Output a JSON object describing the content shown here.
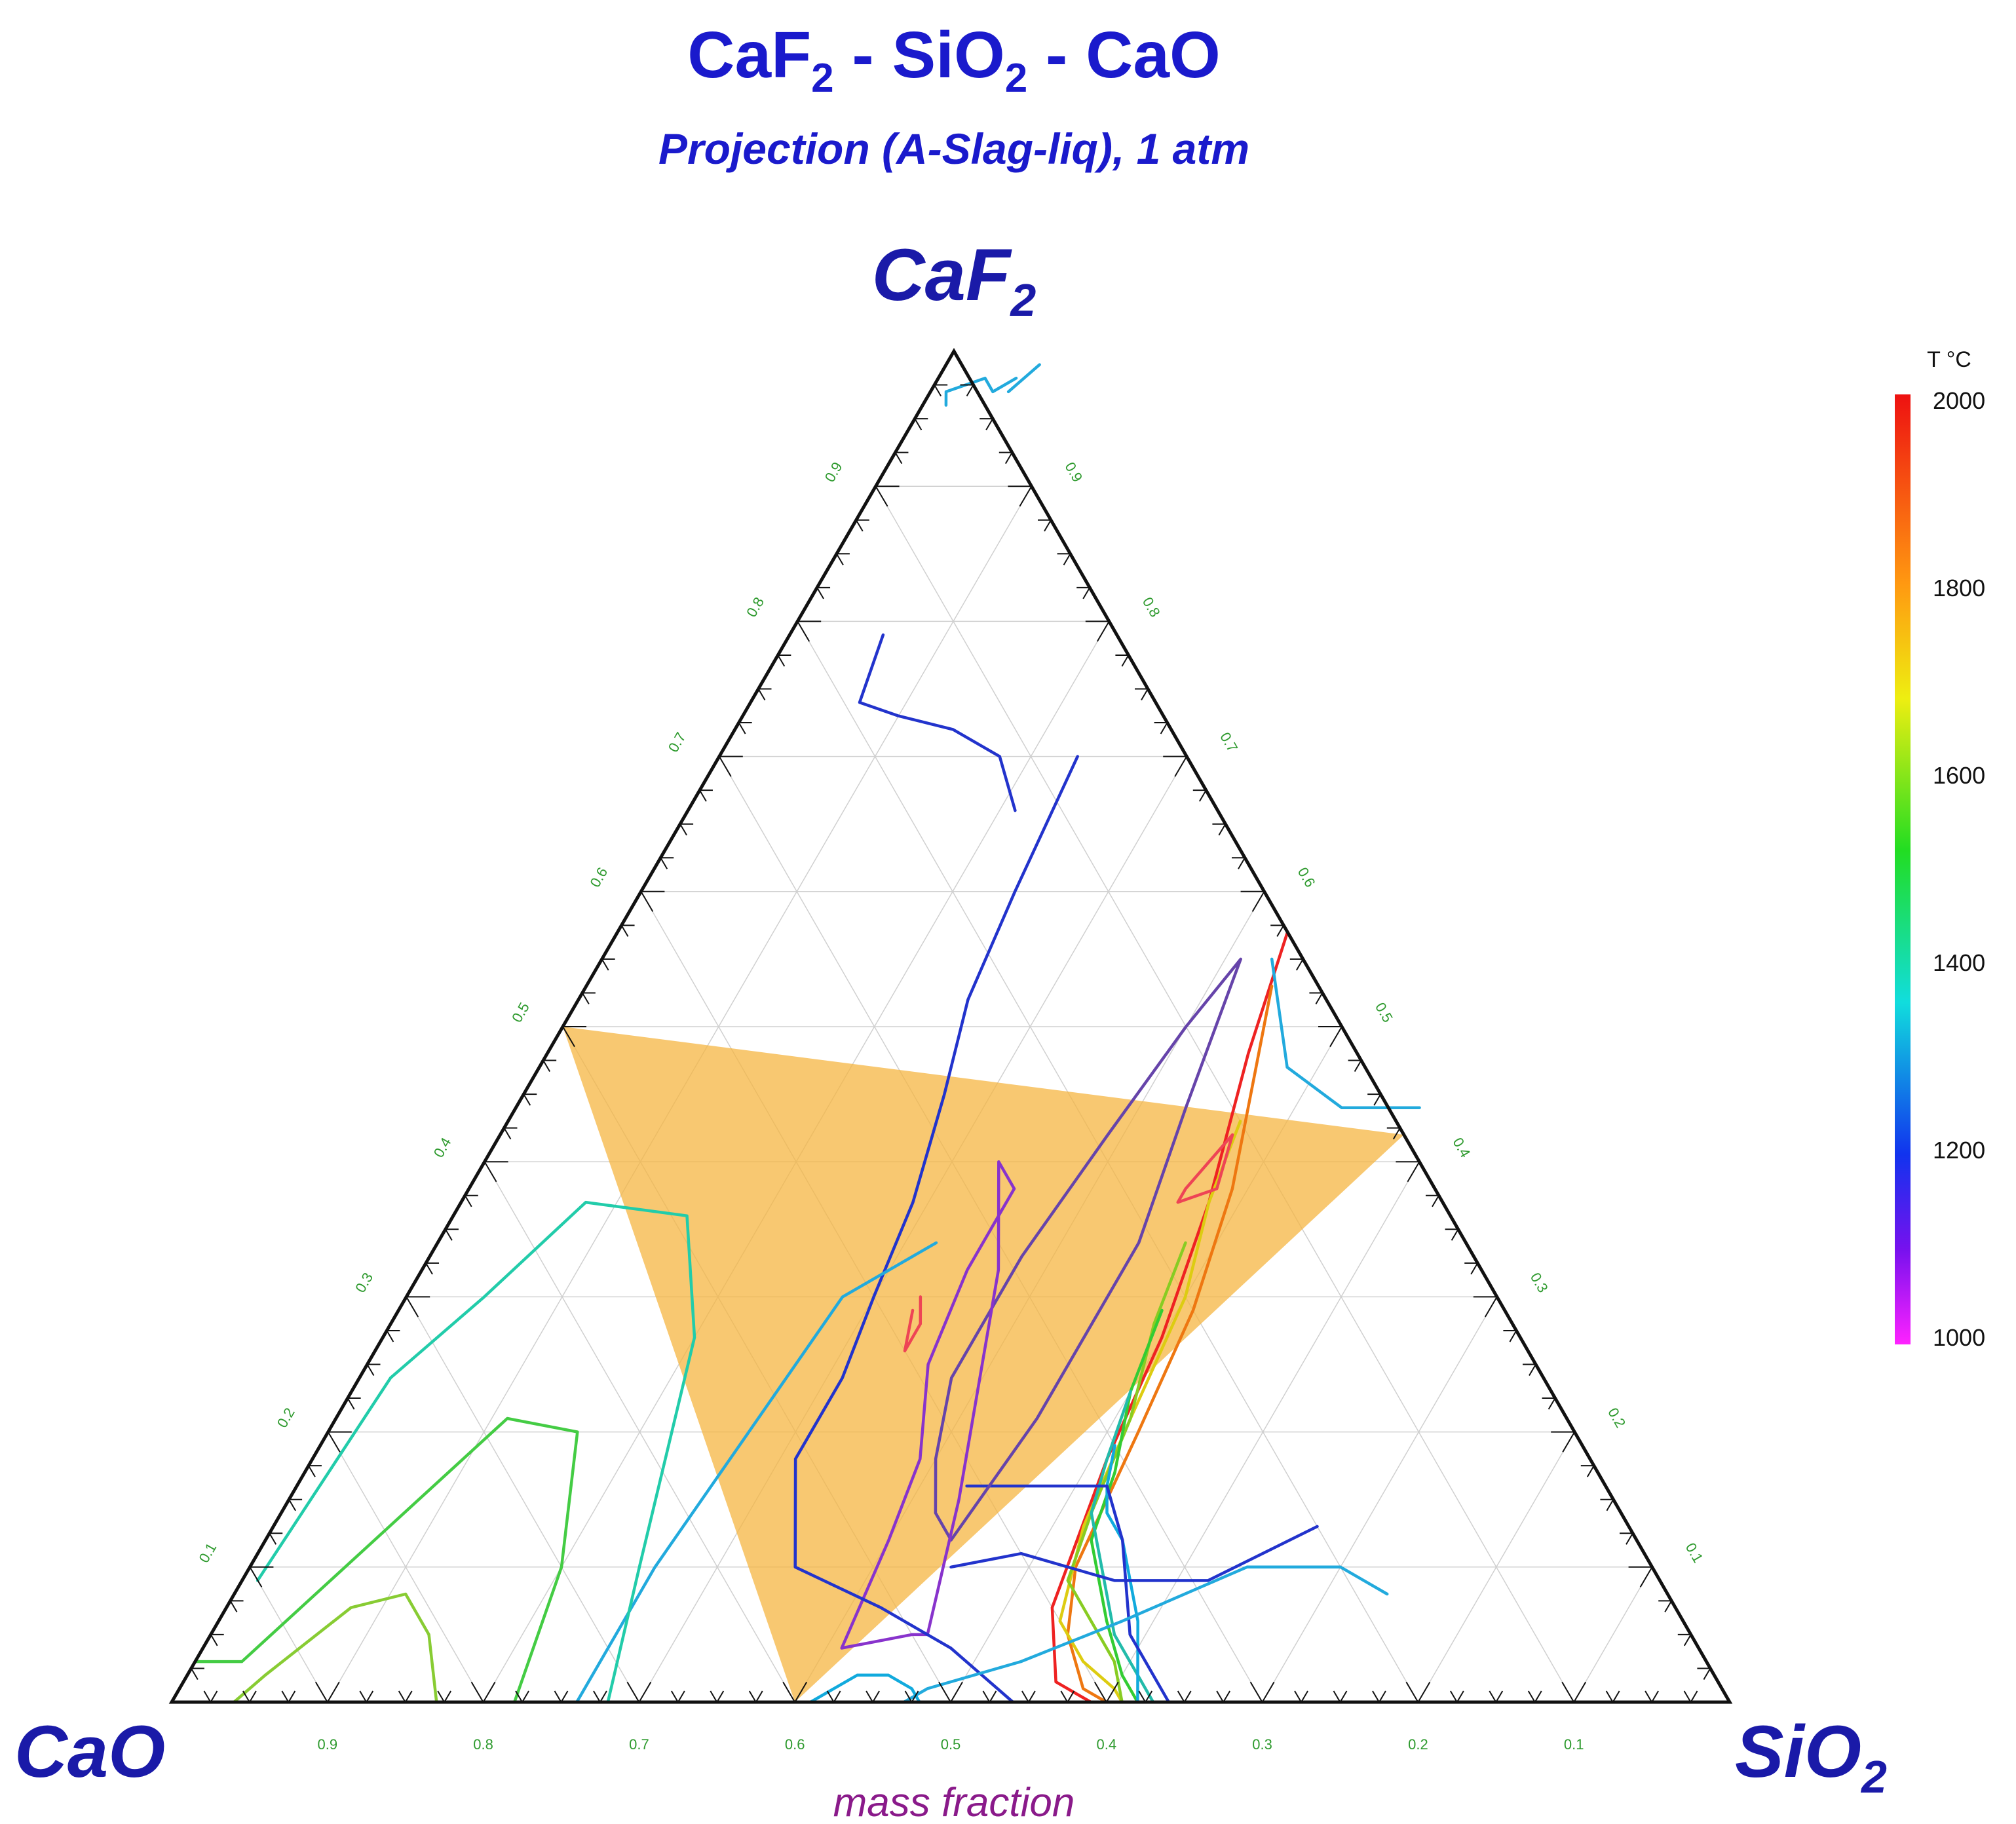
{
  "chart_data": {
    "type": "ternary-contour",
    "title": {
      "a": "CaF",
      "a_sub": "2",
      "sep1": " - ",
      "b": "SiO",
      "b_sub": "2",
      "sep2": " - ",
      "c": "CaO"
    },
    "subtitle": "Projection (A-Slag-liq), 1 atm",
    "vertices": {
      "top": {
        "text": "CaF",
        "sub": "2"
      },
      "left": {
        "text": "CaO",
        "sub": ""
      },
      "right": {
        "text": "SiO",
        "sub": "2"
      }
    },
    "xlabel": "mass fraction",
    "bottom_ticks": [
      "0.9",
      "0.8",
      "0.7",
      "0.6",
      "0.5",
      "0.4",
      "0.3",
      "0.2",
      "0.1"
    ],
    "left_ticks": [
      "0.1",
      "0.2",
      "0.3",
      "0.4",
      "0.5",
      "0.6",
      "0.7",
      "0.8",
      "0.9"
    ],
    "right_ticks": [
      "0.1",
      "0.2",
      "0.3",
      "0.4",
      "0.5",
      "0.6",
      "0.7",
      "0.8",
      "0.9"
    ],
    "colorbar": {
      "unit": "T °C",
      "min": 1000,
      "max": 2000,
      "labels": [
        "2000",
        "1800",
        "1600",
        "1400",
        "1200",
        "1000"
      ],
      "label_values": [
        2000,
        1800,
        1600,
        1400,
        1200,
        1000
      ]
    },
    "highlight_region": {
      "color": "#f5b642",
      "vertices": [
        {
          "CaO": 0.5,
          "SiO2": 0.0,
          "CaF2": 0.5
        },
        {
          "CaO": 0.0,
          "SiO2": 0.58,
          "CaF2": 0.42
        },
        {
          "CaO": 0.6,
          "SiO2": 0.4,
          "CaF2": 0.0
        }
      ]
    },
    "isotherms": [
      {
        "color": "#ee2222",
        "points": [
          [
            0.43,
            0.57
          ],
          [
            0.45,
            0.48
          ],
          [
            0.48,
            0.37
          ],
          [
            0.5,
            0.27
          ],
          [
            0.51,
            0.18
          ],
          [
            0.53,
            0.07
          ],
          [
            0.56,
            0.015
          ],
          [
            0.59,
            0.0
          ]
        ]
      },
      {
        "color": "#ee7711",
        "points": [
          [
            0.44,
            0.53
          ],
          [
            0.46,
            0.47
          ],
          [
            0.49,
            0.38
          ],
          [
            0.51,
            0.29
          ],
          [
            0.52,
            0.2
          ],
          [
            0.53,
            0.1
          ],
          [
            0.55,
            0.05
          ],
          [
            0.58,
            0.01
          ],
          [
            0.6,
            0.0
          ]
        ]
      },
      {
        "color": "#ddcc11",
        "points": [
          [
            0.47,
            0.43
          ],
          [
            0.48,
            0.37
          ],
          [
            0.5,
            0.3
          ],
          [
            0.51,
            0.21
          ],
          [
            0.52,
            0.13
          ],
          [
            0.54,
            0.06
          ],
          [
            0.57,
            0.03
          ],
          [
            0.6,
            0.01
          ],
          [
            0.61,
            0.0
          ]
        ]
      },
      {
        "color": "#88cc22",
        "points": [
          [
            0.48,
            0.34
          ],
          [
            0.49,
            0.28
          ],
          [
            0.51,
            0.21
          ],
          [
            0.52,
            0.14
          ],
          [
            0.53,
            0.09
          ],
          [
            0.56,
            0.06
          ],
          [
            0.59,
            0.03
          ],
          [
            0.61,
            0.0
          ]
        ]
      },
      {
        "color": "#33cc33",
        "points": [
          [
            0.49,
            0.29
          ],
          [
            0.5,
            0.23
          ],
          [
            0.52,
            0.17
          ],
          [
            0.53,
            0.12
          ],
          [
            0.55,
            0.09
          ],
          [
            0.57,
            0.06
          ],
          [
            0.6,
            0.02
          ],
          [
            0.62,
            0.0
          ]
        ]
      },
      {
        "color": "#22bbaa",
        "points": [
          [
            0.5,
            0.23
          ],
          [
            0.51,
            0.18
          ],
          [
            0.52,
            0.14
          ],
          [
            0.54,
            0.11
          ],
          [
            0.56,
            0.08
          ],
          [
            0.58,
            0.05
          ],
          [
            0.61,
            0.02
          ],
          [
            0.63,
            0.0
          ]
        ]
      },
      {
        "color": "#11aadd",
        "points": [
          [
            0.51,
            0.19
          ],
          [
            0.52,
            0.16
          ],
          [
            0.53,
            0.14
          ],
          [
            0.55,
            0.12
          ],
          [
            0.57,
            0.09
          ],
          [
            0.59,
            0.06
          ],
          [
            0.62,
            0.0
          ]
        ]
      },
      {
        "color": "#2233cc",
        "points": [
          [
            0.43,
            0.16
          ],
          [
            0.45,
            0.16
          ],
          [
            0.52,
            0.16
          ],
          [
            0.55,
            0.12
          ],
          [
            0.59,
            0.05
          ],
          [
            0.64,
            0.0
          ]
        ]
      },
      {
        "color": "#6644aa",
        "points": [
          [
            0.41,
            0.55
          ],
          [
            0.4,
            0.5
          ],
          [
            0.39,
            0.42
          ],
          [
            0.38,
            0.33
          ],
          [
            0.38,
            0.24
          ],
          [
            0.4,
            0.18
          ],
          [
            0.42,
            0.14
          ],
          [
            0.44,
            0.12
          ],
          [
            0.45,
            0.21
          ],
          [
            0.45,
            0.34
          ],
          [
            0.43,
            0.44
          ],
          [
            0.41,
            0.55
          ]
        ]
      },
      {
        "color": "#8833cc",
        "points": [
          [
            0.33,
            0.4
          ],
          [
            0.35,
            0.38
          ],
          [
            0.35,
            0.32
          ],
          [
            0.36,
            0.25
          ],
          [
            0.39,
            0.18
          ],
          [
            0.4,
            0.12
          ],
          [
            0.41,
            0.04
          ],
          [
            0.45,
            0.05
          ],
          [
            0.46,
            0.05
          ],
          [
            0.43,
            0.15
          ],
          [
            0.37,
            0.32
          ],
          [
            0.33,
            0.4
          ]
        ]
      },
      {
        "color": "#2233cc",
        "points": [
          [
            0.67,
            0.13
          ],
          [
            0.62,
            0.09
          ],
          [
            0.56,
            0.09
          ],
          [
            0.49,
            0.11
          ],
          [
            0.45,
            0.1
          ]
        ]
      },
      {
        "color": "#2233cc",
        "points": [
          [
            0.06,
            0.79
          ],
          [
            0.07,
            0.74
          ],
          [
            0.1,
            0.73
          ],
          [
            0.14,
            0.72
          ],
          [
            0.18,
            0.7
          ],
          [
            0.21,
            0.66
          ]
        ]
      },
      {
        "color": "#2233cc",
        "points": [
          [
            0.23,
            0.7
          ],
          [
            0.24,
            0.6
          ],
          [
            0.25,
            0.52
          ],
          [
            0.27,
            0.45
          ],
          [
            0.29,
            0.37
          ],
          [
            0.3,
            0.3
          ],
          [
            0.31,
            0.24
          ],
          [
            0.31,
            0.18
          ],
          [
            0.33,
            0.14
          ],
          [
            0.35,
            0.1
          ],
          [
            0.42,
            0.07
          ],
          [
            0.48,
            0.04
          ],
          [
            0.54,
            0.0
          ]
        ]
      },
      {
        "color": "#22aadd",
        "points": [
          [
            0.43,
            0.55
          ],
          [
            0.48,
            0.47
          ],
          [
            0.53,
            0.44
          ],
          [
            0.58,
            0.44
          ]
        ]
      },
      {
        "color": "#22aadd",
        "points": [
          [
            0.32,
            0.34
          ],
          [
            0.28,
            0.3
          ],
          [
            0.27,
            0.2
          ],
          [
            0.26,
            0.1
          ],
          [
            0.26,
            0.0
          ]
        ]
      },
      {
        "color": "#22aadd",
        "points": [
          [
            0.74,
            0.08
          ],
          [
            0.7,
            0.1
          ],
          [
            0.64,
            0.1
          ],
          [
            0.58,
            0.06
          ],
          [
            0.53,
            0.03
          ],
          [
            0.48,
            0.01
          ],
          [
            0.47,
            0.0
          ]
        ]
      },
      {
        "color": "#22aadd",
        "points": [
          [
            0.015,
            0.96
          ],
          [
            0.01,
            0.97
          ],
          [
            0.03,
            0.98
          ],
          [
            0.04,
            0.97
          ],
          [
            0.05,
            0.98
          ]
        ]
      },
      {
        "color": "#22ccaa",
        "points": [
          [
            0.28,
            0.0
          ],
          [
            0.25,
            0.1
          ],
          [
            0.2,
            0.27
          ],
          [
            0.15,
            0.36
          ],
          [
            0.08,
            0.37
          ],
          [
            0.05,
            0.3
          ],
          [
            0.02,
            0.24
          ],
          [
            0.01,
            0.09
          ]
        ]
      },
      {
        "color": "#44cc44",
        "points": [
          [
            0.22,
            0.0
          ],
          [
            0.2,
            0.1
          ],
          [
            0.16,
            0.2
          ],
          [
            0.11,
            0.21
          ],
          [
            0.07,
            0.12
          ],
          [
            0.03,
            0.03
          ],
          [
            0.0,
            0.03
          ]
        ]
      },
      {
        "color": "#88cc33",
        "points": [
          [
            0.17,
            0.0
          ],
          [
            0.14,
            0.05
          ],
          [
            0.11,
            0.08
          ],
          [
            0.08,
            0.07
          ],
          [
            0.05,
            0.02
          ],
          [
            0.04,
            0.0
          ]
        ]
      },
      {
        "color": "#11aadd",
        "points": [
          [
            0.41,
            0.0
          ],
          [
            0.43,
            0.02
          ],
          [
            0.45,
            0.02
          ],
          [
            0.47,
            0.01
          ],
          [
            0.48,
            0.0
          ]
        ]
      },
      {
        "color": "#ee4455",
        "points": [
          [
            0.33,
            0.3
          ],
          [
            0.34,
            0.28
          ],
          [
            0.34,
            0.26
          ],
          [
            0.33,
            0.29
          ]
        ]
      },
      {
        "color": "#ee4455",
        "points": [
          [
            0.47,
            0.42
          ],
          [
            0.46,
            0.38
          ],
          [
            0.46,
            0.37
          ],
          [
            0.48,
            0.38
          ],
          [
            0.47,
            0.42
          ]
        ]
      },
      {
        "color": "#22aadd",
        "points": [
          [
            0.05,
            0.97
          ],
          [
            0.06,
            0.99
          ]
        ]
      }
    ]
  }
}
